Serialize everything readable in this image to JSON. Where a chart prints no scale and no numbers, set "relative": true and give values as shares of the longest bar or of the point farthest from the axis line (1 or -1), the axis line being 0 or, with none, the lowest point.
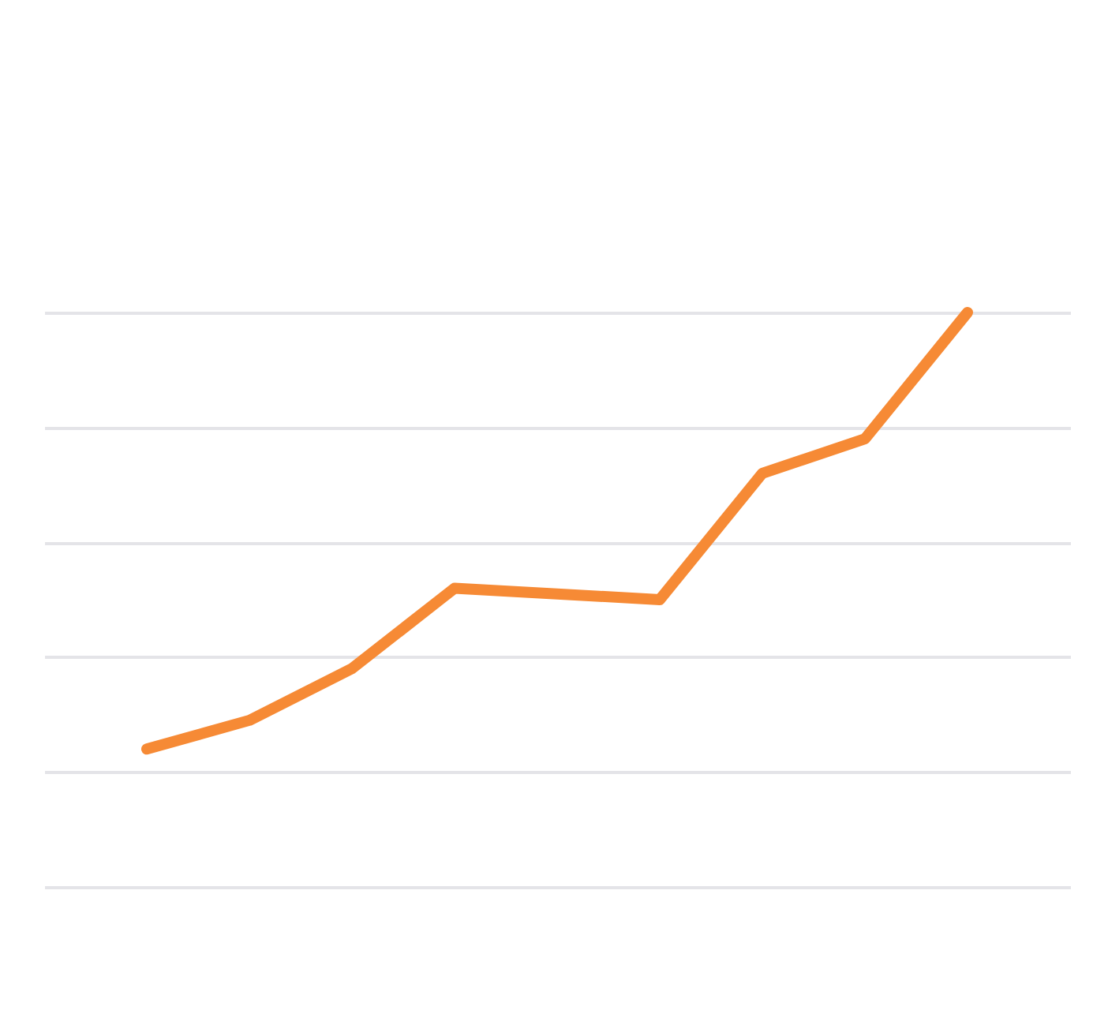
{
  "chart_data": {
    "type": "line",
    "relative": true,
    "grid": "y",
    "line_style": "solid",
    "tick_labels": false,
    "categories": [
      null,
      null,
      null,
      null,
      null,
      null,
      null,
      null,
      null
    ],
    "series": [
      {
        "color": "#f68a35",
        "values": [
          0.24,
          0.29,
          0.38,
          0.52,
          0.51,
          0.5,
          0.72,
          0.78,
          1.0
        ]
      }
    ]
  }
}
